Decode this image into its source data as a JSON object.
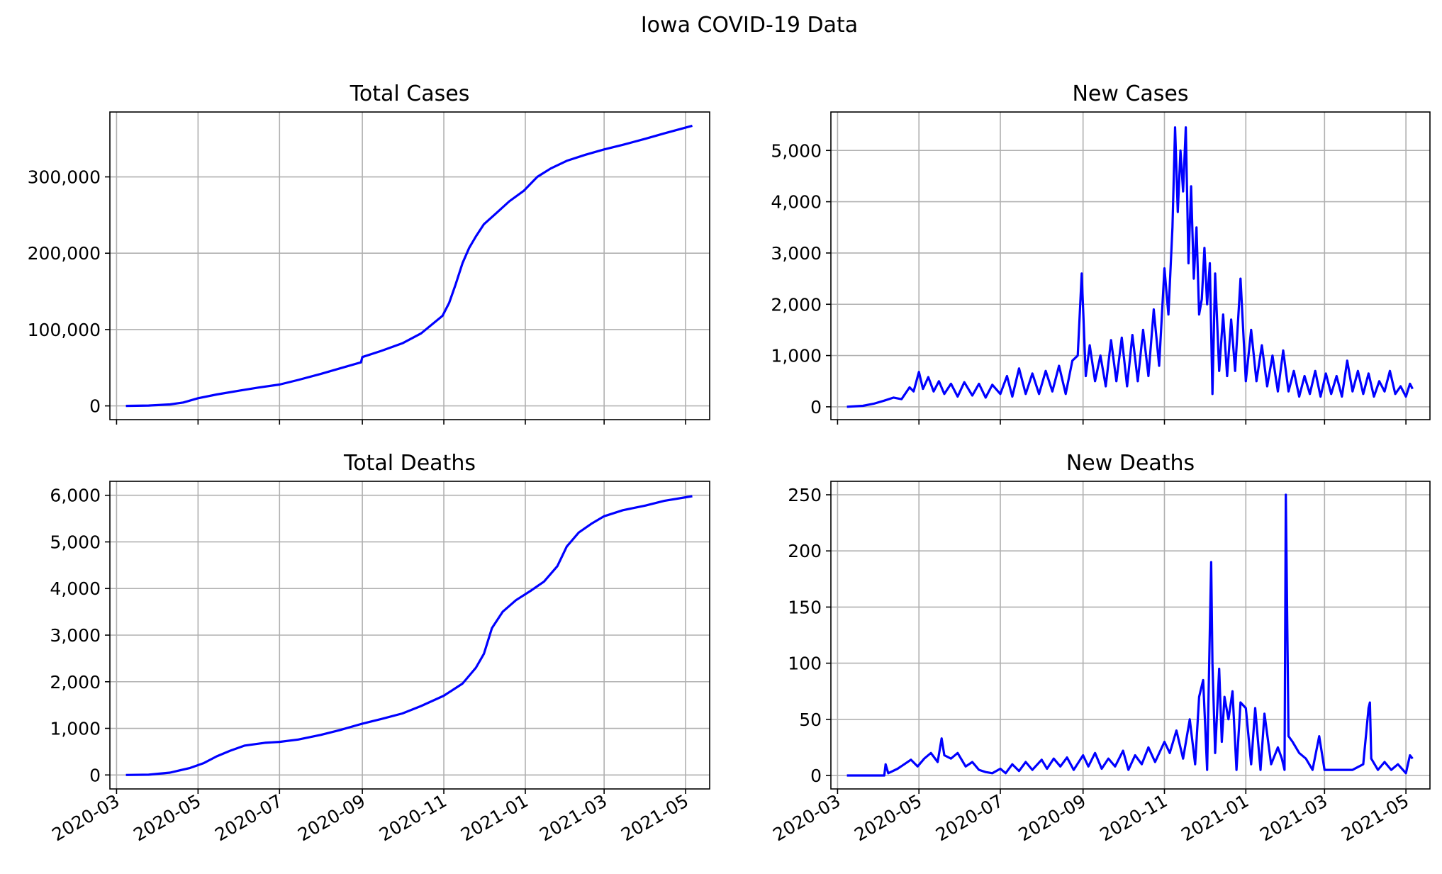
{
  "suptitle": "Iowa COVID-19 Data",
  "line_color": "#0000ff",
  "x_tick_labels": [
    "2020-03",
    "2020-05",
    "2020-07",
    "2020-09",
    "2020-11",
    "2021-01",
    "2021-03",
    "2021-05"
  ],
  "chart_data": [
    {
      "type": "line",
      "title": "Total Cases",
      "xlabel": "",
      "ylabel": "",
      "x_type": "date",
      "xlim": [
        "2020-02-25",
        "2021-05-19"
      ],
      "ylim": [
        -18000,
        385000
      ],
      "yticks": [
        0,
        100000,
        200000,
        300000
      ],
      "ytick_labels": [
        "0",
        "100,000",
        "200,000",
        "300,000"
      ],
      "grid": true,
      "series": [
        {
          "x": [
            "2020-03-08",
            "2020-03-25",
            "2020-04-10",
            "2020-04-20",
            "2020-05-01",
            "2020-05-15",
            "2020-06-01",
            "2020-06-15",
            "2020-07-01",
            "2020-07-15",
            "2020-08-01",
            "2020-08-15",
            "2020-08-31",
            "2020-09-01",
            "2020-09-15",
            "2020-10-01",
            "2020-10-15",
            "2020-10-31",
            "2020-11-05",
            "2020-11-10",
            "2020-11-15",
            "2020-11-20",
            "2020-11-25",
            "2020-12-01",
            "2020-12-10",
            "2020-12-20",
            "2020-12-31",
            "2021-01-10",
            "2021-01-20",
            "2021-02-01",
            "2021-02-15",
            "2021-03-01",
            "2021-03-15",
            "2021-04-01",
            "2021-04-15",
            "2021-05-06"
          ],
          "y": [
            0,
            500,
            2000,
            4500,
            10000,
            15000,
            20000,
            24000,
            28000,
            34000,
            42000,
            49000,
            57000,
            64000,
            72000,
            82000,
            95000,
            118000,
            135000,
            160000,
            187000,
            207000,
            222000,
            238000,
            252000,
            268000,
            282000,
            300000,
            311000,
            321000,
            329000,
            336000,
            342000,
            350000,
            357000,
            367000
          ]
        }
      ]
    },
    {
      "type": "line",
      "title": "New Cases",
      "xlabel": "",
      "ylabel": "",
      "x_type": "date",
      "xlim": [
        "2020-02-25",
        "2021-05-19"
      ],
      "ylim": [
        -250,
        5750
      ],
      "yticks": [
        0,
        1000,
        2000,
        3000,
        4000,
        5000
      ],
      "ytick_labels": [
        "0",
        "1,000",
        "2,000",
        "3,000",
        "4,000",
        "5,000"
      ],
      "grid": true,
      "series": [
        {
          "x": [
            "2020-03-08",
            "2020-03-20",
            "2020-03-28",
            "2020-04-05",
            "2020-04-12",
            "2020-04-18",
            "2020-04-24",
            "2020-04-27",
            "2020-05-01",
            "2020-05-04",
            "2020-05-08",
            "2020-05-12",
            "2020-05-16",
            "2020-05-20",
            "2020-05-25",
            "2020-05-30",
            "2020-06-04",
            "2020-06-10",
            "2020-06-15",
            "2020-06-20",
            "2020-06-25",
            "2020-07-01",
            "2020-07-06",
            "2020-07-10",
            "2020-07-15",
            "2020-07-20",
            "2020-07-25",
            "2020-07-30",
            "2020-08-04",
            "2020-08-09",
            "2020-08-14",
            "2020-08-19",
            "2020-08-24",
            "2020-08-28",
            "2020-08-31",
            "2020-09-03",
            "2020-09-06",
            "2020-09-10",
            "2020-09-14",
            "2020-09-18",
            "2020-09-22",
            "2020-09-26",
            "2020-09-30",
            "2020-10-04",
            "2020-10-08",
            "2020-10-12",
            "2020-10-16",
            "2020-10-20",
            "2020-10-24",
            "2020-10-28",
            "2020-11-01",
            "2020-11-04",
            "2020-11-07",
            "2020-11-09",
            "2020-11-11",
            "2020-11-13",
            "2020-11-15",
            "2020-11-17",
            "2020-11-19",
            "2020-11-21",
            "2020-11-23",
            "2020-11-25",
            "2020-11-27",
            "2020-11-29",
            "2020-12-01",
            "2020-12-03",
            "2020-12-05",
            "2020-12-07",
            "2020-12-09",
            "2020-12-12",
            "2020-12-15",
            "2020-12-18",
            "2020-12-21",
            "2020-12-24",
            "2020-12-28",
            "2021-01-01",
            "2021-01-05",
            "2021-01-09",
            "2021-01-13",
            "2021-01-17",
            "2021-01-21",
            "2021-01-25",
            "2021-01-29",
            "2021-02-02",
            "2021-02-06",
            "2021-02-10",
            "2021-02-14",
            "2021-02-18",
            "2021-02-22",
            "2021-02-26",
            "2021-03-02",
            "2021-03-06",
            "2021-03-10",
            "2021-03-14",
            "2021-03-18",
            "2021-03-22",
            "2021-03-26",
            "2021-03-30",
            "2021-04-03",
            "2021-04-07",
            "2021-04-11",
            "2021-04-15",
            "2021-04-19",
            "2021-04-23",
            "2021-04-27",
            "2021-05-01",
            "2021-05-04",
            "2021-05-06"
          ],
          "y": [
            0,
            20,
            60,
            120,
            180,
            150,
            380,
            300,
            680,
            350,
            580,
            300,
            500,
            250,
            450,
            200,
            480,
            220,
            450,
            180,
            430,
            250,
            600,
            200,
            750,
            250,
            650,
            250,
            700,
            300,
            800,
            250,
            900,
            1000,
            2600,
            600,
            1200,
            500,
            1000,
            400,
            1300,
            500,
            1350,
            400,
            1400,
            500,
            1500,
            600,
            1900,
            800,
            2700,
            1800,
            3500,
            5450,
            3800,
            5000,
            4200,
            5450,
            2800,
            4300,
            2500,
            3500,
            1800,
            2100,
            3100,
            2000,
            2800,
            250,
            2600,
            700,
            1800,
            600,
            1700,
            700,
            2500,
            500,
            1500,
            500,
            1200,
            400,
            1000,
            300,
            1100,
            300,
            700,
            200,
            600,
            250,
            700,
            200,
            650,
            250,
            600,
            200,
            900,
            300,
            700,
            250,
            650,
            200,
            500,
            300,
            700,
            250,
            400,
            200,
            450,
            350
          ]
        }
      ]
    },
    {
      "type": "line",
      "title": "Total Deaths",
      "xlabel": "",
      "ylabel": "",
      "x_type": "date",
      "xlim": [
        "2020-02-25",
        "2021-05-19"
      ],
      "ylim": [
        -300,
        6300
      ],
      "yticks": [
        0,
        1000,
        2000,
        3000,
        4000,
        5000,
        6000
      ],
      "ytick_labels": [
        "0",
        "1,000",
        "2,000",
        "3,000",
        "4,000",
        "5,000",
        "6,000"
      ],
      "grid": true,
      "series": [
        {
          "x": [
            "2020-03-08",
            "2020-03-25",
            "2020-04-10",
            "2020-04-25",
            "2020-05-05",
            "2020-05-15",
            "2020-05-25",
            "2020-06-05",
            "2020-06-20",
            "2020-07-01",
            "2020-07-15",
            "2020-08-01",
            "2020-08-15",
            "2020-09-01",
            "2020-09-15",
            "2020-10-01",
            "2020-10-15",
            "2020-11-01",
            "2020-11-15",
            "2020-11-25",
            "2020-12-01",
            "2020-12-07",
            "2020-12-15",
            "2020-12-25",
            "2021-01-05",
            "2021-01-15",
            "2021-01-25",
            "2021-02-01",
            "2021-02-10",
            "2021-02-20",
            "2021-03-01",
            "2021-03-15",
            "2021-04-01",
            "2021-04-15",
            "2021-05-06"
          ],
          "y": [
            0,
            5,
            50,
            150,
            250,
            400,
            520,
            630,
            690,
            710,
            760,
            860,
            960,
            1100,
            1200,
            1320,
            1480,
            1700,
            1960,
            2300,
            2600,
            3150,
            3500,
            3750,
            3950,
            4150,
            4480,
            4900,
            5200,
            5400,
            5550,
            5680,
            5780,
            5880,
            5980
          ]
        }
      ]
    },
    {
      "type": "line",
      "title": "New Deaths",
      "xlabel": "",
      "ylabel": "",
      "x_type": "date",
      "xlim": [
        "2020-02-25",
        "2021-05-19"
      ],
      "ylim": [
        -12,
        262
      ],
      "yticks": [
        0,
        50,
        100,
        150,
        200,
        250
      ],
      "ytick_labels": [
        "0",
        "50",
        "100",
        "150",
        "200",
        "250"
      ],
      "grid": true,
      "series": [
        {
          "x": [
            "2020-03-08",
            "2020-03-25",
            "2020-04-05",
            "2020-04-06",
            "2020-04-08",
            "2020-04-15",
            "2020-04-20",
            "2020-04-25",
            "2020-04-30",
            "2020-05-05",
            "2020-05-10",
            "2020-05-15",
            "2020-05-18",
            "2020-05-20",
            "2020-05-25",
            "2020-05-30",
            "2020-06-05",
            "2020-06-10",
            "2020-06-15",
            "2020-06-20",
            "2020-06-25",
            "2020-07-01",
            "2020-07-05",
            "2020-07-10",
            "2020-07-15",
            "2020-07-20",
            "2020-07-25",
            "2020-08-01",
            "2020-08-05",
            "2020-08-10",
            "2020-08-15",
            "2020-08-20",
            "2020-08-25",
            "2020-09-01",
            "2020-09-05",
            "2020-09-10",
            "2020-09-15",
            "2020-09-20",
            "2020-09-25",
            "2020-10-01",
            "2020-10-05",
            "2020-10-10",
            "2020-10-15",
            "2020-10-20",
            "2020-10-25",
            "2020-11-01",
            "2020-11-05",
            "2020-11-10",
            "2020-11-15",
            "2020-11-20",
            "2020-11-24",
            "2020-11-27",
            "2020-11-30",
            "2020-12-03",
            "2020-12-06",
            "2020-12-07",
            "2020-12-09",
            "2020-12-12",
            "2020-12-14",
            "2020-12-16",
            "2020-12-19",
            "2020-12-22",
            "2020-12-25",
            "2020-12-28",
            "2021-01-01",
            "2021-01-05",
            "2021-01-08",
            "2021-01-12",
            "2021-01-15",
            "2021-01-20",
            "2021-01-25",
            "2021-01-28",
            "2021-01-30",
            "2021-01-31",
            "2021-02-02",
            "2021-02-05",
            "2021-02-10",
            "2021-02-15",
            "2021-02-20",
            "2021-02-25",
            "2021-03-01",
            "2021-03-08",
            "2021-03-15",
            "2021-03-22",
            "2021-03-30",
            "2021-04-03",
            "2021-04-04",
            "2021-04-05",
            "2021-04-10",
            "2021-04-15",
            "2021-04-20",
            "2021-04-25",
            "2021-05-01",
            "2021-05-04",
            "2021-05-06"
          ],
          "y": [
            0,
            0,
            0,
            10,
            2,
            6,
            10,
            14,
            8,
            15,
            20,
            12,
            33,
            18,
            15,
            20,
            8,
            12,
            5,
            3,
            2,
            6,
            2,
            10,
            4,
            12,
            5,
            14,
            6,
            15,
            8,
            16,
            5,
            18,
            8,
            20,
            6,
            15,
            8,
            22,
            5,
            18,
            10,
            25,
            12,
            30,
            20,
            40,
            15,
            50,
            10,
            70,
            85,
            5,
            190,
            100,
            20,
            95,
            30,
            70,
            50,
            75,
            5,
            65,
            60,
            10,
            60,
            5,
            55,
            10,
            25,
            15,
            5,
            250,
            35,
            30,
            20,
            15,
            5,
            35,
            5,
            5,
            5,
            5,
            10,
            60,
            65,
            15,
            5,
            12,
            5,
            10,
            2,
            18,
            15
          ]
        }
      ]
    }
  ]
}
